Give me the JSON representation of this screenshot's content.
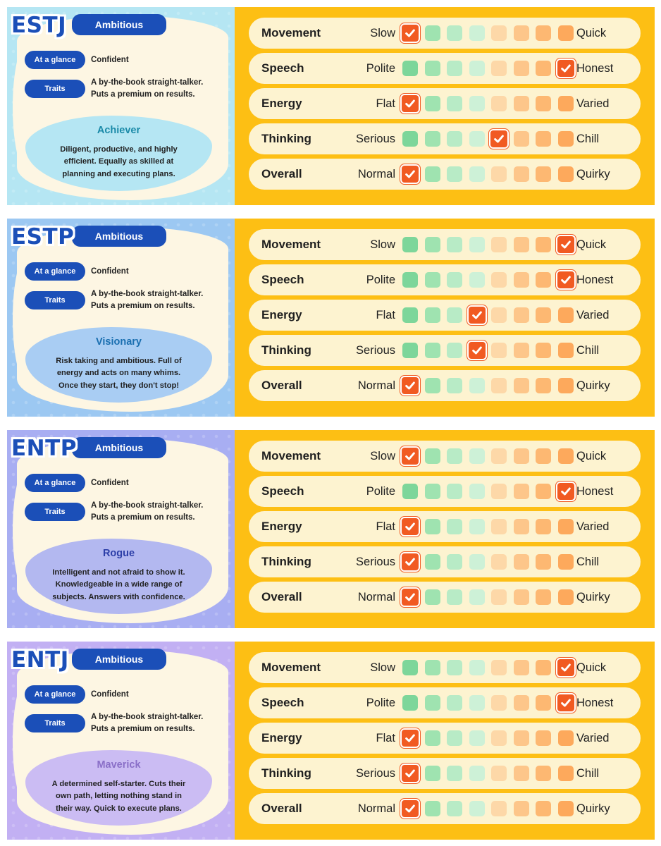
{
  "scale_colors": [
    "#7dd69a",
    "#9fe3b0",
    "#b8ebc6",
    "#cdf1d7",
    "#fdd8a8",
    "#fdc68a",
    "#fdb872",
    "#fda95c"
  ],
  "check_color": "#f15a22",
  "cards": [
    {
      "code": "ESTJ",
      "tag": "Ambitious",
      "glance_label": "At a glance",
      "glance_value": "Confident",
      "traits_label": "Traits",
      "traits_line1": "A by-the-book straight-talker.",
      "traits_line2": "Puts a premium on results.",
      "archetype": "Achiever",
      "desc_line1": "Diligent, productive, and highly",
      "desc_line2": "efficient. Equally as skilled at",
      "desc_line3": "planning and executing plans.",
      "bg": "#b5e6f3",
      "desc_bg": "#b5e6f3",
      "title_color": "#1a8aa8",
      "rows": [
        {
          "label": "Movement",
          "min": "Slow",
          "max": "Quick",
          "level": 1
        },
        {
          "label": "Speech",
          "min": "Polite",
          "max": "Honest",
          "level": 8
        },
        {
          "label": "Energy",
          "min": "Flat",
          "max": "Varied",
          "level": 1
        },
        {
          "label": "Thinking",
          "min": "Serious",
          "max": "Chill",
          "level": 5
        },
        {
          "label": "Overall",
          "min": "Normal",
          "max": "Quirky",
          "level": 1
        }
      ]
    },
    {
      "code": "ESTP",
      "tag": "Ambitious",
      "glance_label": "At a glance",
      "glance_value": "Confident",
      "traits_label": "Traits",
      "traits_line1": "A by-the-book straight-talker.",
      "traits_line2": "Puts a premium on results.",
      "archetype": "Visionary",
      "desc_line1": "Risk taking and ambitious. Full of",
      "desc_line2": "energy and acts on many whims.",
      "desc_line3": "Once they start, they don't stop!",
      "bg": "#9cc8f2",
      "desc_bg": "#a9cdf3",
      "title_color": "#1a6fb0",
      "rows": [
        {
          "label": "Movement",
          "min": "Slow",
          "max": "Quick",
          "level": 8
        },
        {
          "label": "Speech",
          "min": "Polite",
          "max": "Honest",
          "level": 8
        },
        {
          "label": "Energy",
          "min": "Flat",
          "max": "Varied",
          "level": 4
        },
        {
          "label": "Thinking",
          "min": "Serious",
          "max": "Chill",
          "level": 4
        },
        {
          "label": "Overall",
          "min": "Normal",
          "max": "Quirky",
          "level": 1
        }
      ]
    },
    {
      "code": "ENTP",
      "tag": "Ambitious",
      "glance_label": "At a glance",
      "glance_value": "Confident",
      "traits_label": "Traits",
      "traits_line1": "A by-the-book straight-talker.",
      "traits_line2": "Puts a premium on results.",
      "archetype": "Rogue",
      "desc_line1": "Intelligent and not afraid to show it.",
      "desc_line2": "Knowledgeable in a wide range of",
      "desc_line3": "subjects. Answers with confidence.",
      "bg": "#a8aef2",
      "desc_bg": "#b3b8f0",
      "title_color": "#2d3fa8",
      "rows": [
        {
          "label": "Movement",
          "min": "Slow",
          "max": "Quick",
          "level": 1
        },
        {
          "label": "Speech",
          "min": "Polite",
          "max": "Honest",
          "level": 8
        },
        {
          "label": "Energy",
          "min": "Flat",
          "max": "Varied",
          "level": 1
        },
        {
          "label": "Thinking",
          "min": "Serious",
          "max": "Chill",
          "level": 1
        },
        {
          "label": "Overall",
          "min": "Normal",
          "max": "Quirky",
          "level": 1
        }
      ]
    },
    {
      "code": "ENTJ",
      "tag": "Ambitious",
      "glance_label": "At a glance",
      "glance_value": "Confident",
      "traits_label": "Traits",
      "traits_line1": "A by-the-book straight-talker.",
      "traits_line2": "Puts a premium on results.",
      "archetype": "Maverick",
      "desc_line1": "A determined self-starter. Cuts their",
      "desc_line2": "own path, letting nothing stand in",
      "desc_line3": "their way. Quick to execute plans.",
      "bg": "#c2b0f3",
      "desc_bg": "#cbbcf3",
      "title_color": "#8a6fc8",
      "rows": [
        {
          "label": "Movement",
          "min": "Slow",
          "max": "Quick",
          "level": 8
        },
        {
          "label": "Speech",
          "min": "Polite",
          "max": "Honest",
          "level": 8
        },
        {
          "label": "Energy",
          "min": "Flat",
          "max": "Varied",
          "level": 1
        },
        {
          "label": "Thinking",
          "min": "Serious",
          "max": "Chill",
          "level": 1
        },
        {
          "label": "Overall",
          "min": "Normal",
          "max": "Quirky",
          "level": 1
        }
      ]
    }
  ]
}
